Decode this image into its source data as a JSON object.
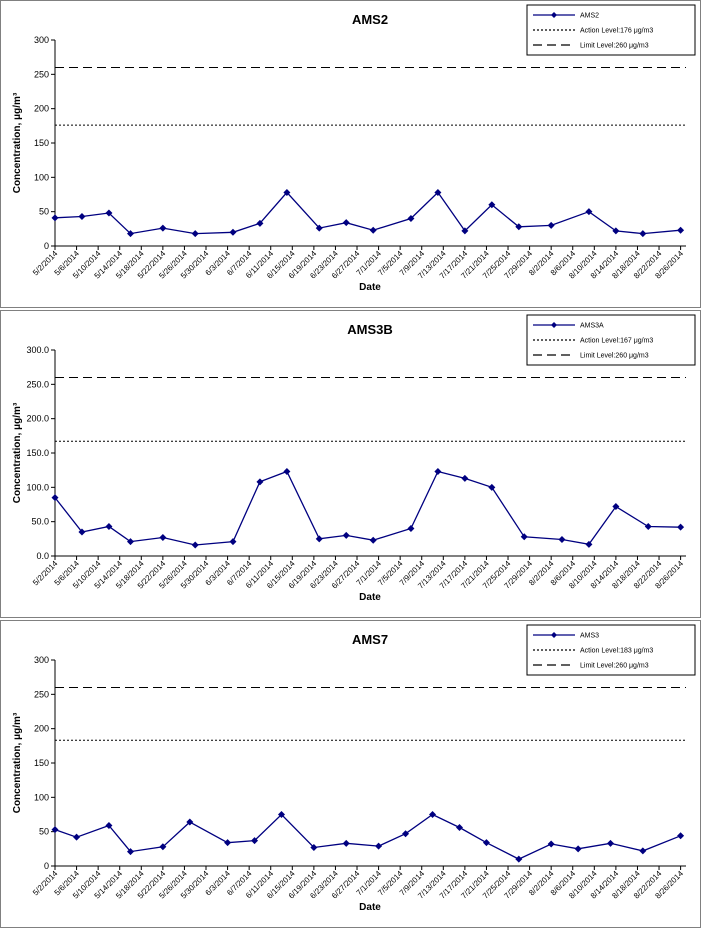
{
  "chart_data": [
    {
      "type": "line",
      "title": "AMS2",
      "x_label": "Date",
      "y_label": "Concentration, μg/m³",
      "xlim": [
        "5/2/2014",
        "8/27/2014"
      ],
      "xticks": [
        "5/2/2014",
        "5/6/2014",
        "5/10/2014",
        "5/14/2014",
        "5/18/2014",
        "5/22/2014",
        "5/26/2014",
        "5/30/2014",
        "6/3/2014",
        "6/7/2014",
        "6/11/2014",
        "6/15/2014",
        "6/19/2014",
        "6/23/2014",
        "6/27/2014",
        "7/1/2014",
        "7/5/2014",
        "7/9/2014",
        "7/13/2014",
        "7/17/2014",
        "7/21/2014",
        "7/25/2014",
        "7/29/2014",
        "8/2/2014",
        "8/6/2014",
        "8/10/2014",
        "8/14/2014",
        "8/18/2014",
        "8/22/2014",
        "8/26/2014"
      ],
      "ylim": [
        0,
        300
      ],
      "yticks": [
        0,
        50,
        100,
        150,
        200,
        250,
        300
      ],
      "series": [
        {
          "name": "AMS2",
          "color": "#000080",
          "marker": "diamond",
          "dash": "solid",
          "x": [
            "5/2/2014",
            "5/7/2014",
            "5/12/2014",
            "5/16/2014",
            "5/22/2014",
            "5/28/2014",
            "6/4/2014",
            "6/9/2014",
            "6/14/2014",
            "6/20/2014",
            "6/25/2014",
            "6/30/2014",
            "7/7/2014",
            "7/12/2014",
            "7/17/2014",
            "7/22/2014",
            "7/27/2014",
            "8/2/2014",
            "8/9/2014",
            "8/14/2014",
            "8/19/2014",
            "8/26/2014"
          ],
          "values": [
            41,
            43,
            48,
            18,
            26,
            18,
            20,
            33,
            78,
            26,
            34,
            23,
            40,
            78,
            22,
            60,
            28,
            30,
            50,
            22,
            18,
            23
          ]
        },
        {
          "name": "Action Level:176 μg/m3",
          "color": "#000000",
          "dash": "dotted",
          "x": [
            "5/2/2014",
            "8/27/2014"
          ],
          "values": [
            176,
            176
          ]
        },
        {
          "name": "Limit Level:260 μg/m3",
          "color": "#000000",
          "dash": "dashed",
          "x": [
            "5/2/2014",
            "8/27/2014"
          ],
          "values": [
            260,
            260
          ]
        }
      ]
    },
    {
      "type": "line",
      "title": "AMS3B",
      "x_label": "Date",
      "y_label": "Concentration, μg/m³",
      "xlim": [
        "5/2/2014",
        "8/27/2014"
      ],
      "xticks": [
        "5/2/2014",
        "5/6/2014",
        "5/10/2014",
        "5/14/2014",
        "5/18/2014",
        "5/22/2014",
        "5/26/2014",
        "5/30/2014",
        "6/3/2014",
        "6/7/2014",
        "6/11/2014",
        "6/15/2014",
        "6/19/2014",
        "6/23/2014",
        "6/27/2014",
        "7/1/2014",
        "7/5/2014",
        "7/9/2014",
        "7/13/2014",
        "7/17/2014",
        "7/21/2014",
        "7/25/2014",
        "7/29/2014",
        "8/2/2014",
        "8/6/2014",
        "8/10/2014",
        "8/14/2014",
        "8/18/2014",
        "8/22/2014",
        "8/26/2014"
      ],
      "ylim": [
        0,
        300
      ],
      "yticks": [
        {
          "value": 0,
          "label": "0.0"
        },
        {
          "value": 50,
          "label": "50.0"
        },
        {
          "value": 100,
          "label": "100.0"
        },
        {
          "value": 150,
          "label": "150.0"
        },
        {
          "value": 200,
          "label": "200.0"
        },
        {
          "value": 250,
          "label": "250.0"
        },
        {
          "value": 300,
          "label": "300.0"
        }
      ],
      "series": [
        {
          "name": "AMS3A",
          "color": "#000080",
          "marker": "diamond",
          "dash": "solid",
          "x": [
            "5/2/2014",
            "5/7/2014",
            "5/12/2014",
            "5/16/2014",
            "5/22/2014",
            "5/28/2014",
            "6/4/2014",
            "6/9/2014",
            "6/14/2014",
            "6/20/2014",
            "6/25/2014",
            "6/30/2014",
            "7/7/2014",
            "7/12/2014",
            "7/17/2014",
            "7/22/2014",
            "7/28/2014",
            "8/4/2014",
            "8/9/2014",
            "8/14/2014",
            "8/20/2014",
            "8/26/2014"
          ],
          "values": [
            85,
            35,
            43,
            21,
            27,
            16,
            21,
            108,
            123,
            25,
            30,
            23,
            40,
            123,
            113,
            100,
            28,
            24,
            17,
            72,
            43,
            42
          ]
        },
        {
          "name": "Action Level:167 μg/m3",
          "color": "#000000",
          "dash": "dotted",
          "x": [
            "5/2/2014",
            "8/27/2014"
          ],
          "values": [
            167,
            167
          ]
        },
        {
          "name": "Limit Level:260 μg/m3",
          "color": "#000000",
          "dash": "dashed",
          "x": [
            "5/2/2014",
            "8/27/2014"
          ],
          "values": [
            260,
            260
          ]
        }
      ]
    },
    {
      "type": "line",
      "title": "AMS7",
      "x_label": "Date",
      "y_label": "Concentration, μg/m³",
      "xlim": [
        "5/2/2014",
        "8/27/2014"
      ],
      "xticks": [
        "5/2/2014",
        "5/6/2014",
        "5/10/2014",
        "5/14/2014",
        "5/18/2014",
        "5/22/2014",
        "5/26/2014",
        "5/30/2014",
        "6/3/2014",
        "6/7/2014",
        "6/11/2014",
        "6/15/2014",
        "6/19/2014",
        "6/23/2014",
        "6/27/2014",
        "7/1/2014",
        "7/5/2014",
        "7/9/2014",
        "7/13/2014",
        "7/17/2014",
        "7/21/2014",
        "7/25/2014",
        "7/29/2014",
        "8/2/2014",
        "8/6/2014",
        "8/10/2014",
        "8/14/2014",
        "8/18/2014",
        "8/22/2014",
        "8/26/2014"
      ],
      "ylim": [
        0,
        300
      ],
      "yticks": [
        0,
        50,
        100,
        150,
        200,
        250,
        300
      ],
      "series": [
        {
          "name": "AMS3",
          "color": "#000080",
          "marker": "diamond",
          "dash": "solid",
          "x": [
            "5/2/2014",
            "5/6/2014",
            "5/12/2014",
            "5/16/2014",
            "5/22/2014",
            "5/27/2014",
            "6/3/2014",
            "6/8/2014",
            "6/13/2014",
            "6/19/2014",
            "6/25/2014",
            "7/1/2014",
            "7/6/2014",
            "7/11/2014",
            "7/16/2014",
            "7/21/2014",
            "7/27/2014",
            "8/2/2014",
            "8/7/2014",
            "8/13/2014",
            "8/19/2014",
            "8/26/2014"
          ],
          "values": [
            53,
            42,
            59,
            21,
            28,
            64,
            34,
            37,
            75,
            27,
            33,
            29,
            47,
            75,
            56,
            34,
            10,
            32,
            25,
            33,
            22,
            44
          ]
        },
        {
          "name": "Action Level:183 μg/m3",
          "color": "#000000",
          "dash": "dotted",
          "x": [
            "5/2/2014",
            "8/27/2014"
          ],
          "values": [
            183,
            183
          ]
        },
        {
          "name": "Limit Level:260 μg/m3",
          "color": "#000000",
          "dash": "dashed",
          "x": [
            "5/2/2014",
            "8/27/2014"
          ],
          "values": [
            260,
            260
          ]
        }
      ]
    }
  ]
}
